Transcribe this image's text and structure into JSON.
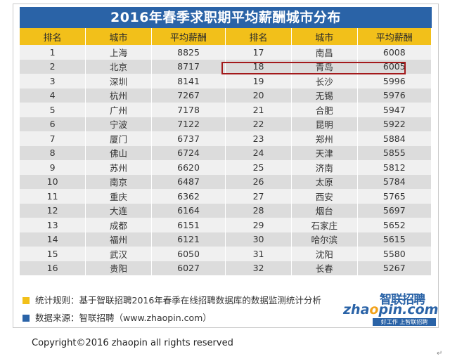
{
  "title": "2016年春季求职期平均薪酬城市分布",
  "headers": [
    "排名",
    "城市",
    "平均薪酬",
    "排名",
    "城市",
    "平均薪酬"
  ],
  "rows": [
    [
      "1",
      "上海",
      "8825",
      "17",
      "南昌",
      "6008"
    ],
    [
      "2",
      "北京",
      "8717",
      "18",
      "青岛",
      "6005"
    ],
    [
      "3",
      "深圳",
      "8141",
      "19",
      "长沙",
      "5996"
    ],
    [
      "4",
      "杭州",
      "7267",
      "20",
      "无锡",
      "5976"
    ],
    [
      "5",
      "广州",
      "7178",
      "21",
      "合肥",
      "5947"
    ],
    [
      "6",
      "宁波",
      "7122",
      "22",
      "昆明",
      "5922"
    ],
    [
      "7",
      "厦门",
      "6737",
      "23",
      "郑州",
      "5884"
    ],
    [
      "8",
      "佛山",
      "6724",
      "24",
      "天津",
      "5855"
    ],
    [
      "9",
      "苏州",
      "6620",
      "25",
      "济南",
      "5812"
    ],
    [
      "10",
      "南京",
      "6487",
      "26",
      "太原",
      "5784"
    ],
    [
      "11",
      "重庆",
      "6362",
      "27",
      "西安",
      "5765"
    ],
    [
      "12",
      "大连",
      "6164",
      "28",
      "烟台",
      "5697"
    ],
    [
      "13",
      "成都",
      "6151",
      "29",
      "石家庄",
      "5652"
    ],
    [
      "14",
      "福州",
      "6121",
      "30",
      "哈尔滨",
      "5615"
    ],
    [
      "15",
      "武汉",
      "6050",
      "31",
      "沈阳",
      "5580"
    ],
    [
      "16",
      "贵阳",
      "6027",
      "32",
      "长春",
      "5267"
    ]
  ],
  "highlighted_row": {
    "rank": "18",
    "city": "青岛",
    "salary": "6005"
  },
  "notes": {
    "rule": "统计规则：基于智联招聘2016年春季在线招聘数据库的数据监测统计分析",
    "source": "数据来源：智联招聘（www.zhaopin.com）"
  },
  "logo": {
    "cn": "智联招聘",
    "en_prefix": "zha",
    "en_o": "o",
    "en_suffix": "pin.com",
    "slogan": "好工作 上智联招聘"
  },
  "copyright": "Copyright©2016 zhaopin all rights reserved",
  "return_mark": "↵",
  "colors": {
    "title_bg": "#2a63a7",
    "header_bg": "#f2c01a",
    "row_light": "#f0f0f0",
    "row_dark": "#dcdcdc",
    "highlight_border": "#a3191b",
    "note_square_yellow": "#f2c01a",
    "note_square_blue": "#2a63a7"
  }
}
